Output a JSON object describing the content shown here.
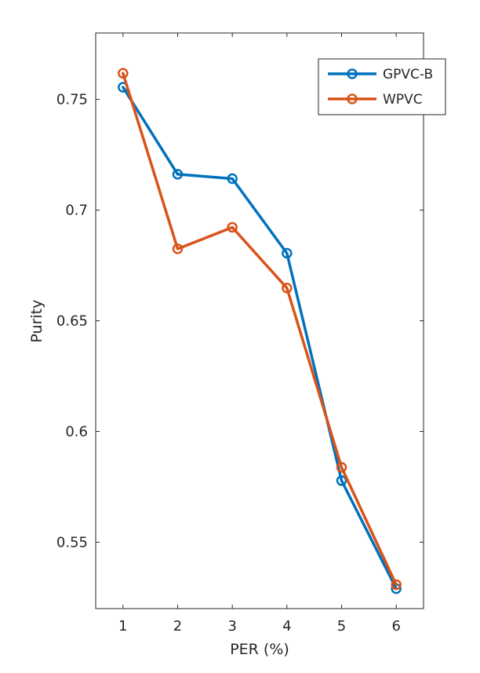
{
  "chart_data": {
    "type": "line",
    "xlabel": "PER (%)",
    "ylabel": "Purity",
    "x": [
      1,
      2,
      3,
      4,
      5,
      6
    ],
    "xlim": [
      0.5,
      6.5
    ],
    "ylim": [
      0.52,
      0.78
    ],
    "xticks": [
      1,
      2,
      3,
      4,
      5,
      6
    ],
    "yticks": [
      0.55,
      0.6,
      0.65,
      0.7,
      0.75
    ],
    "xtick_labels": [
      "1",
      "2",
      "3",
      "4",
      "5",
      "6"
    ],
    "ytick_labels": [
      "0.55",
      "0.6",
      "0.65",
      "0.7",
      "0.75"
    ],
    "grid": false,
    "legend_position": "top-right",
    "series": [
      {
        "name": "GPVC-B",
        "color": "#0072BD",
        "marker": "circle",
        "values": [
          0.7555,
          0.7162,
          0.7142,
          0.6805,
          0.5778,
          0.529
        ]
      },
      {
        "name": "WPVC",
        "color": "#D95319",
        "marker": "circle",
        "values": [
          0.7618,
          0.6825,
          0.6922,
          0.6648,
          0.5838,
          0.5308
        ]
      }
    ]
  }
}
